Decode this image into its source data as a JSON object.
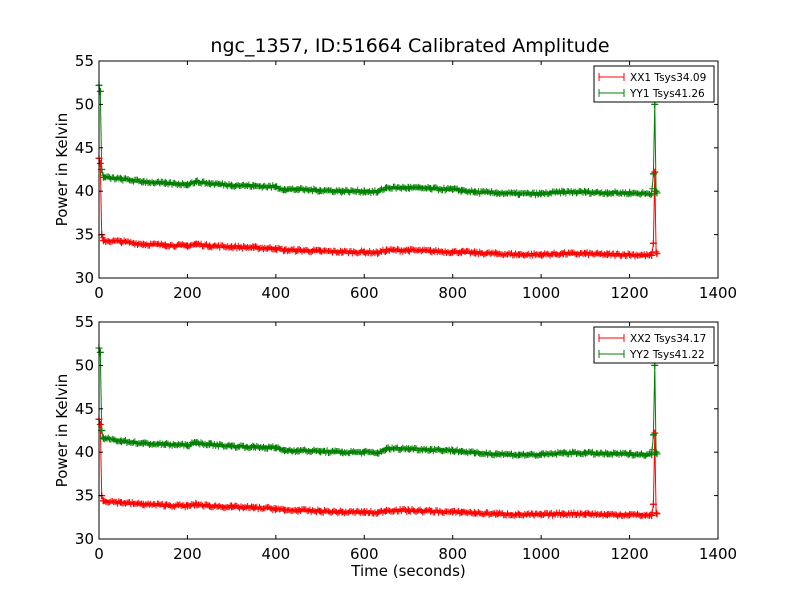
{
  "title": "ngc_1357, ID:51664 Calibrated Amplitude",
  "xlabel": "Time (seconds)",
  "ylabel": "Power in Kelvin",
  "colors": {
    "xx": "#ff0000",
    "yy": "#008000"
  },
  "chart_data": [
    {
      "type": "line",
      "title": "ngc_1357, ID:51664 Calibrated Amplitude",
      "xlabel": "",
      "ylabel": "Power in Kelvin",
      "xlim": [
        0,
        1400
      ],
      "ylim": [
        30,
        55
      ],
      "xticks": [
        0,
        200,
        400,
        600,
        800,
        1000,
        1200,
        1400
      ],
      "yticks": [
        30,
        35,
        40,
        45,
        50,
        55
      ],
      "legend_position": "top-right",
      "grid": false,
      "series": [
        {
          "name": "XX1 Tsys34.09",
          "color": "#ff0000",
          "x": [
            0,
            3,
            6,
            10,
            50,
            100,
            150,
            200,
            220,
            250,
            300,
            350,
            400,
            420,
            450,
            500,
            550,
            600,
            630,
            650,
            700,
            750,
            800,
            820,
            850,
            900,
            950,
            1000,
            1050,
            1100,
            1150,
            1200,
            1250,
            1254,
            1257,
            1260,
            1262
          ],
          "y": [
            43.8,
            43.2,
            35.0,
            34.3,
            34.2,
            33.9,
            33.8,
            33.7,
            33.9,
            33.7,
            33.6,
            33.5,
            33.4,
            33.2,
            33.2,
            33.1,
            33.0,
            33.0,
            32.9,
            33.2,
            33.2,
            33.1,
            33.0,
            33.0,
            32.9,
            32.8,
            32.7,
            32.7,
            32.8,
            32.8,
            32.7,
            32.7,
            32.6,
            34.0,
            42.2,
            33.0,
            32.8
          ]
        },
        {
          "name": "YY1 Tsys41.26",
          "color": "#008000",
          "x": [
            0,
            3,
            6,
            10,
            50,
            100,
            150,
            200,
            220,
            250,
            300,
            350,
            400,
            420,
            450,
            500,
            550,
            600,
            630,
            650,
            700,
            750,
            800,
            820,
            850,
            900,
            950,
            1000,
            1050,
            1100,
            1150,
            1200,
            1250,
            1254,
            1257,
            1260,
            1262
          ],
          "y": [
            52.2,
            51.5,
            42.5,
            41.6,
            41.4,
            41.1,
            40.9,
            40.8,
            41.1,
            40.9,
            40.7,
            40.6,
            40.5,
            40.2,
            40.2,
            40.1,
            40.0,
            40.0,
            39.9,
            40.4,
            40.4,
            40.3,
            40.2,
            40.1,
            39.9,
            39.8,
            39.7,
            39.7,
            39.9,
            39.9,
            39.8,
            39.8,
            39.7,
            42.0,
            50.0,
            40.0,
            39.8
          ]
        }
      ]
    },
    {
      "type": "line",
      "title": "",
      "xlabel": "Time (seconds)",
      "ylabel": "Power in Kelvin",
      "xlim": [
        0,
        1400
      ],
      "ylim": [
        30,
        55
      ],
      "xticks": [
        0,
        200,
        400,
        600,
        800,
        1000,
        1200,
        1400
      ],
      "yticks": [
        30,
        35,
        40,
        45,
        50,
        55
      ],
      "legend_position": "top-right",
      "grid": false,
      "series": [
        {
          "name": "XX2 Tsys34.17",
          "color": "#ff0000",
          "x": [
            0,
            3,
            6,
            10,
            50,
            100,
            150,
            200,
            220,
            250,
            300,
            350,
            400,
            420,
            450,
            500,
            550,
            600,
            630,
            650,
            700,
            750,
            800,
            820,
            850,
            900,
            950,
            1000,
            1050,
            1100,
            1150,
            1200,
            1250,
            1254,
            1257,
            1260,
            1262
          ],
          "y": [
            43.8,
            43.2,
            35.0,
            34.4,
            34.2,
            34.0,
            33.9,
            33.8,
            34.0,
            33.8,
            33.7,
            33.6,
            33.5,
            33.3,
            33.3,
            33.2,
            33.1,
            33.1,
            33.0,
            33.3,
            33.3,
            33.2,
            33.1,
            33.1,
            33.0,
            32.9,
            32.8,
            32.8,
            32.9,
            32.9,
            32.8,
            32.8,
            32.7,
            34.0,
            42.2,
            33.0,
            32.9
          ]
        },
        {
          "name": "YY2 Tsys41.22",
          "color": "#008000",
          "x": [
            0,
            3,
            6,
            10,
            50,
            100,
            150,
            200,
            220,
            250,
            300,
            350,
            400,
            420,
            450,
            500,
            550,
            600,
            630,
            650,
            700,
            750,
            800,
            820,
            850,
            900,
            950,
            1000,
            1050,
            1100,
            1150,
            1200,
            1250,
            1254,
            1257,
            1260,
            1262
          ],
          "y": [
            52.0,
            51.5,
            42.5,
            41.6,
            41.3,
            41.0,
            40.9,
            40.8,
            41.1,
            40.9,
            40.7,
            40.6,
            40.5,
            40.2,
            40.2,
            40.1,
            40.0,
            40.0,
            39.9,
            40.4,
            40.4,
            40.3,
            40.2,
            40.1,
            39.9,
            39.8,
            39.7,
            39.7,
            39.9,
            39.9,
            39.8,
            39.8,
            39.7,
            42.0,
            50.0,
            40.0,
            39.8
          ]
        }
      ]
    }
  ]
}
